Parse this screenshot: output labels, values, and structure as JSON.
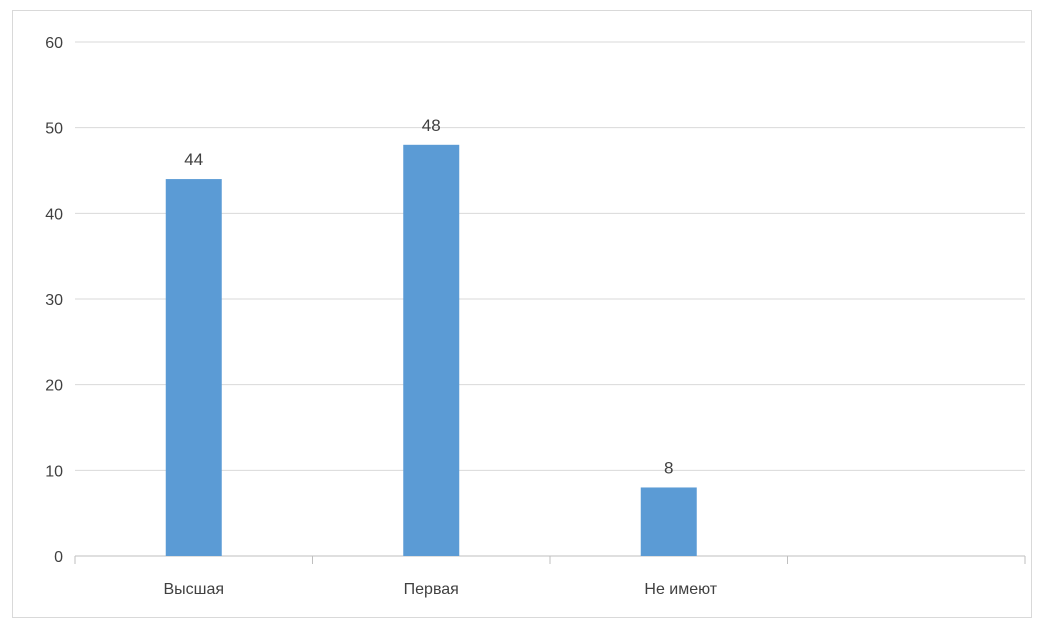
{
  "chart_data": {
    "type": "bar",
    "title": "",
    "xlabel": "",
    "ylabel": "",
    "categories": [
      "Высшая",
      "Первая",
      "Не имеют"
    ],
    "values": [
      44,
      48,
      8
    ],
    "data_labels": [
      "44",
      "48",
      "8"
    ],
    "ylim": [
      0,
      60
    ],
    "yticks": [
      0,
      10,
      20,
      30,
      40,
      50,
      60
    ],
    "grid": true,
    "legend": "none",
    "colors": {
      "bar": "#5b9bd5",
      "grid": "#d9d9d9",
      "axis": "#bfbfbf",
      "text": "#404040"
    }
  }
}
